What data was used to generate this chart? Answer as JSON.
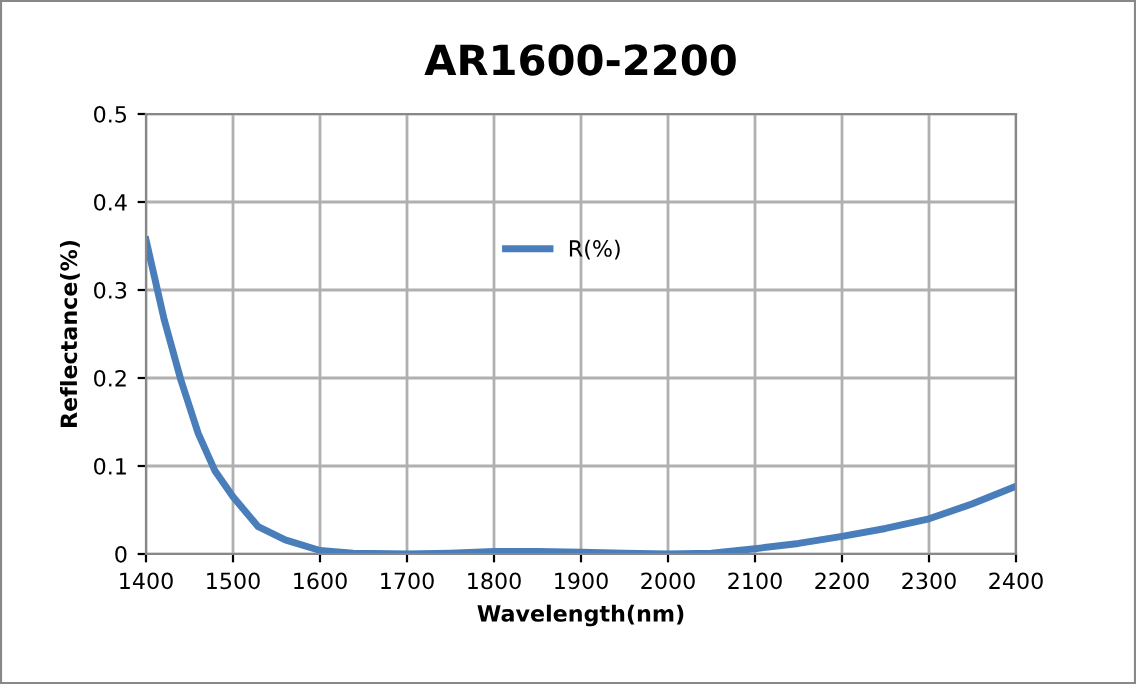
{
  "chart_data": {
    "type": "line",
    "title": "AR1600-2200",
    "xlabel": "Wavelength(nm)",
    "ylabel": "Reflectance(%)",
    "xlim": [
      1400,
      2400
    ],
    "xticks": [
      1400,
      1500,
      1600,
      1700,
      1800,
      1900,
      2000,
      2100,
      2200,
      2300,
      2400
    ],
    "ylim": [
      0,
      0.5
    ],
    "yticks": [
      0,
      0.1,
      0.2,
      0.3,
      0.4,
      0.5
    ],
    "grid": true,
    "legend": "top",
    "marker": "none",
    "line_style": "solid",
    "series": [
      {
        "name": "R(%)",
        "color": "#4a7ebb",
        "x": [
          1400,
          1421,
          1440,
          1460,
          1479,
          1500,
          1529,
          1560,
          1600,
          1638,
          1700,
          1750,
          1800,
          1850,
          1900,
          1950,
          2000,
          2050,
          2100,
          2150,
          2200,
          2250,
          2300,
          2350,
          2400
        ],
        "values": [
          0.357,
          0.266,
          0.198,
          0.137,
          0.095,
          0.065,
          0.031,
          0.016,
          0.004,
          0.001,
          0.0,
          0.001,
          0.003,
          0.003,
          0.002,
          0.001,
          0.0,
          0.001,
          0.006,
          0.012,
          0.02,
          0.029,
          0.04,
          0.057,
          0.077
        ]
      }
    ]
  }
}
